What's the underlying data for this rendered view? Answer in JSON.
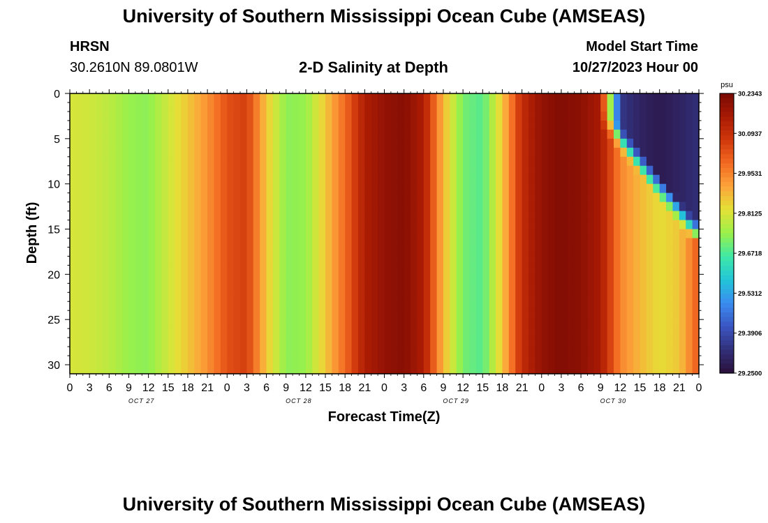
{
  "header": {
    "title": "University of Southern Mississippi Ocean Cube (AMSEAS)",
    "station": "HRSN",
    "coordinates": "30.2610N  89.0801W",
    "subtitle": "2-D Salinity at Depth",
    "model_start_label": "Model Start Time",
    "model_start_time": "10/27/2023 Hour 00"
  },
  "footer": {
    "title": "University of Southern Mississippi Ocean Cube (AMSEAS)"
  },
  "chart_data": {
    "type": "heatmap",
    "title": "2-D Salinity at Depth",
    "xlabel": "Forecast Time(Z)",
    "ylabel": "Depth (ft)",
    "ylim": [
      0,
      31
    ],
    "y_inverted": true,
    "xlim_hours": [
      0,
      96
    ],
    "y_ticks": [
      0,
      5,
      10,
      15,
      20,
      25,
      30
    ],
    "x_tick_labels": [
      "0",
      "3",
      "6",
      "9",
      "12",
      "15",
      "18",
      "21",
      "0",
      "3",
      "6",
      "9",
      "12",
      "15",
      "18",
      "21",
      "0",
      "3",
      "6",
      "9",
      "12",
      "15",
      "18",
      "21",
      "0",
      "3",
      "6",
      "9",
      "12",
      "15",
      "18",
      "21",
      "0"
    ],
    "x_tick_hours": [
      0,
      3,
      6,
      9,
      12,
      15,
      18,
      21,
      24,
      27,
      30,
      33,
      36,
      39,
      42,
      45,
      48,
      51,
      54,
      57,
      60,
      63,
      66,
      69,
      72,
      75,
      78,
      81,
      84,
      87,
      90,
      93,
      96
    ],
    "day_labels": [
      {
        "label": "OCT 27",
        "hour": 12
      },
      {
        "label": "OCT 28",
        "hour": 36
      },
      {
        "label": "OCT 29",
        "hour": 60
      },
      {
        "label": "OCT 30",
        "hour": 84
      }
    ],
    "colorbar": {
      "unit": "psu",
      "min": 29.25,
      "max": 30.2343,
      "tick_labels": [
        "30.2343",
        "30.0937",
        "29.9531",
        "29.8125",
        "29.6718",
        "29.5312",
        "29.3906",
        "29.2500"
      ],
      "colors": [
        "#2a0f3a",
        "#32307a",
        "#3a56c2",
        "#3a8cf0",
        "#22c6d8",
        "#3ee8a6",
        "#9af04a",
        "#e4e236",
        "#fca43a",
        "#f26a22",
        "#d0380c",
        "#a81a04",
        "#7a0a04"
      ]
    },
    "surface_salinity_profile_psu": {
      "hours": [
        0,
        3,
        6,
        9,
        12,
        15,
        18,
        21,
        24,
        27,
        30,
        33,
        36,
        39,
        42,
        45,
        48,
        51,
        54,
        57,
        60,
        63,
        66,
        69,
        72,
        75,
        78,
        81,
        84,
        87,
        90,
        93,
        96
      ],
      "values": [
        29.81,
        29.8,
        29.78,
        29.74,
        29.73,
        29.8,
        29.86,
        29.93,
        30.03,
        30.06,
        29.86,
        29.73,
        29.74,
        29.86,
        29.99,
        30.14,
        30.19,
        30.21,
        30.14,
        29.88,
        29.71,
        29.68,
        29.86,
        30.1,
        30.19,
        30.22,
        30.2,
        30.15,
        29.35,
        29.3,
        29.28,
        29.3,
        29.33
      ]
    },
    "deep_salinity_profile_psu": {
      "hours": [
        0,
        3,
        6,
        9,
        12,
        15,
        18,
        21,
        24,
        27,
        30,
        33,
        36,
        39,
        42,
        45,
        48,
        51,
        54,
        57,
        60,
        63,
        66,
        69,
        72,
        75,
        78,
        81,
        84,
        87,
        90,
        93,
        96
      ],
      "values": [
        29.81,
        29.8,
        29.78,
        29.74,
        29.73,
        29.8,
        29.86,
        29.93,
        30.03,
        30.06,
        29.86,
        29.73,
        29.74,
        29.86,
        29.99,
        30.14,
        30.19,
        30.21,
        30.14,
        29.88,
        29.71,
        29.68,
        29.86,
        30.1,
        30.19,
        30.22,
        30.2,
        30.15,
        29.95,
        29.88,
        29.83,
        29.86,
        30.02
      ]
    }
  }
}
